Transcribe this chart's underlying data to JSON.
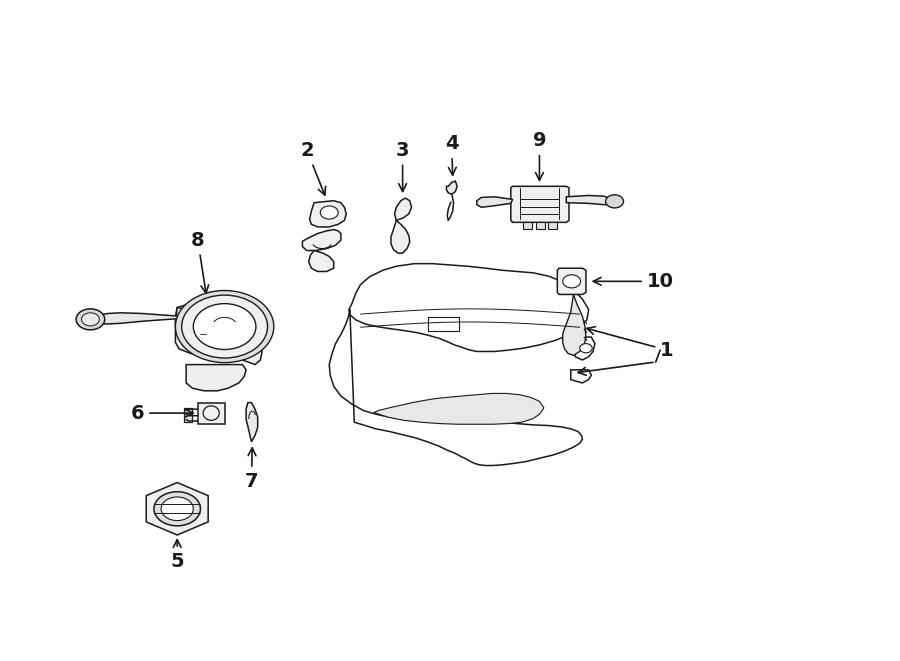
{
  "bg_color": "#ffffff",
  "line_color": "#1a1a1a",
  "figure_width": 9.0,
  "figure_height": 6.61,
  "dpi": 100
}
